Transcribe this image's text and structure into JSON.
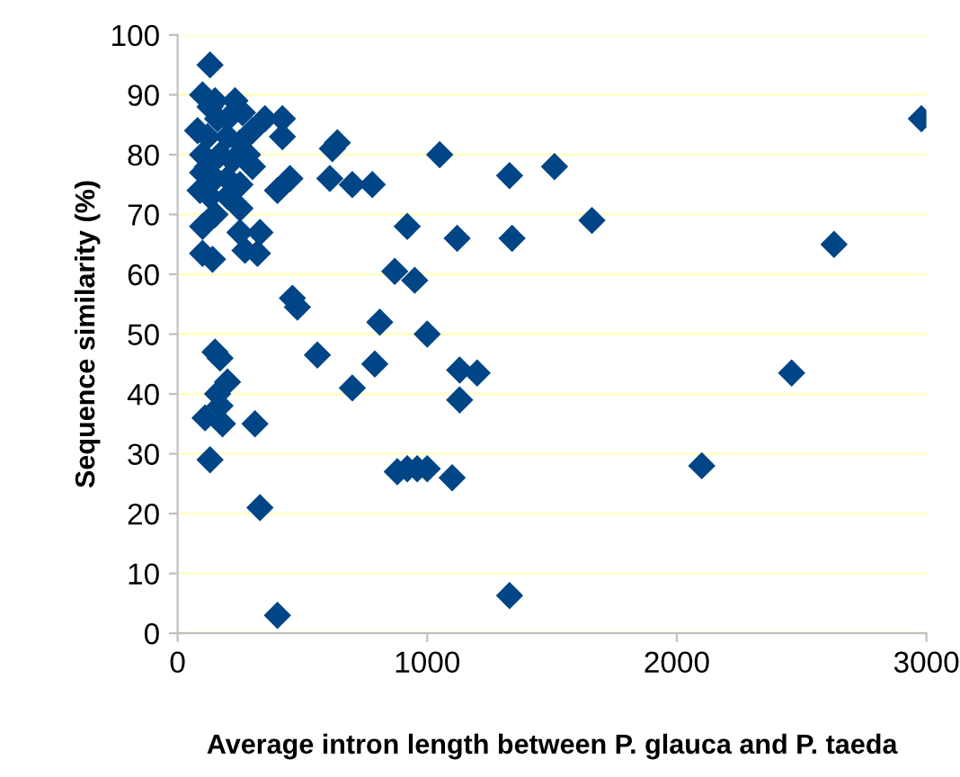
{
  "chart_data": {
    "type": "scatter",
    "xlabel": "Average intron length between P. glauca and P. taeda",
    "ylabel": "Sequence similarity (%)",
    "x": [
      2980,
      2630,
      2460,
      2100,
      1660,
      1510,
      1330,
      1340,
      1330,
      1120,
      1050,
      1100,
      1130,
      1200,
      1130,
      1000,
      950,
      920,
      870,
      810,
      790,
      780,
      700,
      700,
      640,
      620,
      610,
      560,
      460,
      480,
      920,
      960,
      1000,
      880,
      400,
      330,
      310,
      130,
      150,
      170,
      200,
      160,
      110,
      180,
      170,
      130,
      100,
      150,
      230,
      130,
      260,
      350,
      420,
      420,
      300,
      80,
      120,
      200,
      250,
      100,
      170,
      220,
      300,
      100,
      150,
      200,
      250,
      450,
      400,
      90,
      130,
      250,
      100,
      250,
      330,
      270,
      320,
      100,
      140,
      200,
      280,
      150,
      120,
      200,
      160
    ],
    "series": [
      {
        "color": "#004586",
        "values": [
          86,
          65,
          43.5,
          28,
          69,
          78,
          76.5,
          66,
          6.3,
          66,
          80,
          26,
          44,
          43.5,
          39,
          50,
          59,
          68,
          60.5,
          52,
          45,
          75,
          75,
          41,
          82,
          81,
          76,
          46.5,
          56,
          54.5,
          27.5,
          27.5,
          27.5,
          27,
          3,
          21,
          35,
          29,
          47,
          46,
          42,
          40,
          36,
          35,
          38,
          95,
          90,
          89,
          89,
          88,
          87,
          86,
          86,
          83,
          84,
          84,
          83,
          83,
          82,
          80,
          80,
          79,
          78,
          77,
          76,
          76,
          75,
          76,
          74,
          74,
          73,
          71,
          68,
          67,
          67,
          64,
          63.5,
          63.5,
          62.5,
          86,
          80,
          70,
          78,
          73,
          86
        ]
      }
    ],
    "marker": "diamond",
    "xlim": [
      0,
      3000
    ],
    "xticks": [
      0,
      1000,
      2000,
      3000
    ],
    "ylim": [
      0,
      100
    ],
    "yticks": [
      0,
      10,
      20,
      30,
      40,
      50,
      60,
      70,
      80,
      90,
      100
    ],
    "grid": "y"
  }
}
